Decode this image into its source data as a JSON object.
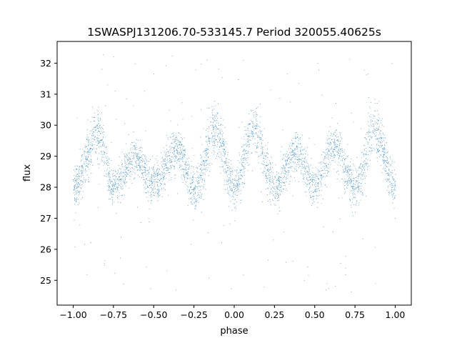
{
  "chart_data": {
    "type": "scatter",
    "title": "1SWASPJ131206.70-533145.7 Period 320055.40625s",
    "xlabel": "phase",
    "ylabel": "flux",
    "xlim": [
      -1.1,
      1.1
    ],
    "ylim": [
      24.2,
      32.7
    ],
    "xticks": [
      -1.0,
      -0.75,
      -0.5,
      -0.25,
      0.0,
      0.25,
      0.5,
      0.75,
      1.0
    ],
    "xtick_labels": [
      "−1.00",
      "−0.75",
      "−0.50",
      "−0.25",
      "0.00",
      "0.25",
      "0.50",
      "0.75",
      "1.00"
    ],
    "yticks": [
      25,
      26,
      27,
      28,
      29,
      30,
      31,
      32
    ],
    "ytick_labels": [
      "25",
      "26",
      "27",
      "28",
      "29",
      "30",
      "31",
      "32"
    ],
    "grid": false,
    "point_color": "#1f77b4",
    "series_envelope": {
      "phase": [
        -1.0,
        -0.85,
        -0.75,
        -0.62,
        -0.5,
        -0.35,
        -0.25,
        -0.12,
        0.0,
        0.12,
        0.25,
        0.38,
        0.5,
        0.62,
        0.75,
        0.87,
        1.0
      ],
      "median_flux": [
        28.0,
        29.7,
        28.0,
        29.0,
        28.1,
        29.2,
        27.9,
        29.8,
        28.0,
        29.8,
        28.0,
        29.1,
        28.1,
        29.3,
        28.0,
        29.8,
        28.0
      ],
      "scatter_halfwidth": [
        0.6,
        0.8,
        0.6,
        0.6,
        0.6,
        0.7,
        0.6,
        0.8,
        0.6,
        0.8,
        0.6,
        0.6,
        0.6,
        0.7,
        0.6,
        0.8,
        0.6
      ]
    },
    "outlier_range": [
      24.6,
      32.3
    ]
  }
}
